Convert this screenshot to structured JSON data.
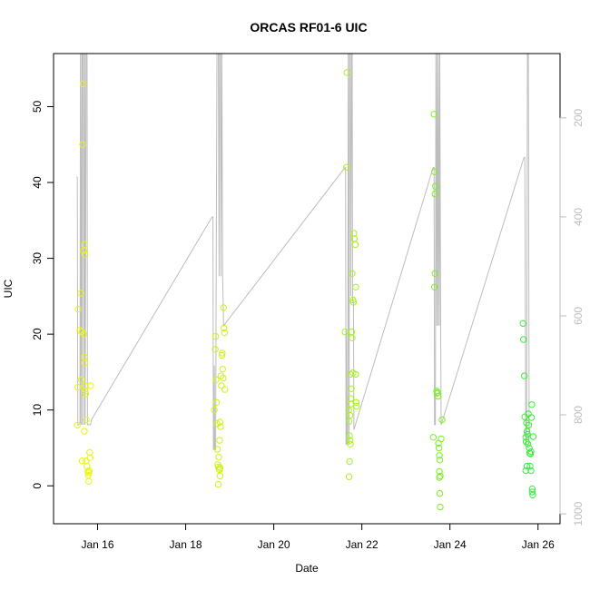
{
  "chart_data": {
    "type": "scatter",
    "title": "ORCAS RF01-6 UIC",
    "xlabel": "Date",
    "ylabel": "UIC",
    "x_ticks": [
      "Jan 16",
      "Jan 18",
      "Jan 20",
      "Jan 22",
      "Jan 24",
      "Jan 26"
    ],
    "x_tick_values": [
      16,
      18,
      20,
      22,
      24,
      26
    ],
    "xlim": [
      15.0,
      26.5
    ],
    "ylim": [
      -5,
      57
    ],
    "y_ticks": [
      0,
      10,
      20,
      30,
      40,
      50
    ],
    "y2_ticks": [
      200,
      400,
      600,
      800,
      1000
    ],
    "y2lim": [
      1020,
      70
    ],
    "y2_reversed": true,
    "grid": false,
    "colors": {
      "secondary_line": "#bdbdbd",
      "right_axis": "#bdbdbd",
      "flight_points": [
        "#e8f50f",
        "#d0f214",
        "#a8f21c",
        "#7cef24",
        "#3cec3c"
      ]
    },
    "flights": [
      {
        "points": [
          [
            15.54,
            8
          ],
          [
            15.55,
            13
          ],
          [
            15.56,
            23.3
          ],
          [
            15.6,
            20.5
          ],
          [
            15.62,
            25.4
          ],
          [
            15.63,
            14
          ],
          [
            15.64,
            20.3
          ],
          [
            15.66,
            45
          ],
          [
            15.67,
            53
          ],
          [
            15.68,
            31
          ],
          [
            15.7,
            31.8
          ],
          [
            15.71,
            30.5
          ],
          [
            15.69,
            20
          ],
          [
            15.7,
            17
          ],
          [
            15.71,
            16.2
          ],
          [
            15.72,
            13.2
          ],
          [
            15.72,
            12.5
          ],
          [
            15.73,
            12.1
          ],
          [
            15.74,
            8.7
          ],
          [
            15.7,
            7.2
          ],
          [
            15.74,
            3.3
          ],
          [
            15.76,
            2.6
          ],
          [
            15.78,
            1.9
          ],
          [
            15.79,
            1.4
          ],
          [
            15.8,
            1.7
          ],
          [
            15.8,
            0.6
          ],
          [
            15.81,
            2
          ],
          [
            15.82,
            4.4
          ],
          [
            15.83,
            3.7
          ],
          [
            15.84,
            13.2
          ],
          [
            15.65,
            3.3
          ]
        ]
      },
      {
        "points": [
          [
            18.65,
            10
          ],
          [
            18.67,
            18
          ],
          [
            18.68,
            19.7
          ],
          [
            18.69,
            14
          ],
          [
            18.7,
            11
          ],
          [
            18.71,
            8.2
          ],
          [
            18.72,
            4.8
          ],
          [
            18.73,
            2.8
          ],
          [
            18.74,
            2.5
          ],
          [
            18.74,
            0.2
          ],
          [
            18.75,
            3.8
          ],
          [
            18.76,
            2.2
          ],
          [
            18.77,
            6
          ],
          [
            18.78,
            8.4
          ],
          [
            18.78,
            1.3
          ],
          [
            18.79,
            7.8
          ],
          [
            18.8,
            14.5
          ],
          [
            18.81,
            13.2
          ],
          [
            18.82,
            17.2
          ],
          [
            18.83,
            17.5
          ],
          [
            18.84,
            15.4
          ],
          [
            18.85,
            14.2
          ],
          [
            18.86,
            23.5
          ],
          [
            18.87,
            20.8
          ],
          [
            18.88,
            20.2
          ],
          [
            18.89,
            12.7
          ],
          [
            18.78,
            2.4
          ],
          [
            18.77,
            2.1
          ]
        ]
      },
      {
        "points": [
          [
            21.62,
            20.3
          ],
          [
            21.66,
            54.5
          ],
          [
            21.65,
            42
          ],
          [
            21.7,
            10
          ],
          [
            21.71,
            8.5
          ],
          [
            21.72,
            6.6
          ],
          [
            21.73,
            6
          ],
          [
            21.74,
            5.5
          ],
          [
            21.72,
            3.2
          ],
          [
            21.71,
            1.2
          ],
          [
            21.74,
            14.7
          ],
          [
            21.75,
            11.5
          ],
          [
            21.76,
            10.8
          ],
          [
            21.77,
            20.3
          ],
          [
            21.78,
            19.5
          ],
          [
            21.78,
            28
          ],
          [
            21.8,
            24.5
          ],
          [
            21.81,
            24.2
          ],
          [
            21.82,
            33.3
          ],
          [
            21.83,
            32.6
          ],
          [
            21.85,
            31.8
          ],
          [
            21.86,
            26.2
          ],
          [
            21.86,
            14.7
          ],
          [
            21.87,
            11
          ],
          [
            21.88,
            10.5
          ],
          [
            21.8,
            14.9
          ],
          [
            21.76,
            12.8
          ],
          [
            21.73,
            9.3
          ]
        ]
      },
      {
        "points": [
          [
            23.62,
            6.4
          ],
          [
            23.64,
            49
          ],
          [
            23.65,
            41.4
          ],
          [
            23.66,
            38.5
          ],
          [
            23.67,
            39.5
          ],
          [
            23.66,
            28
          ],
          [
            23.65,
            26.2
          ],
          [
            23.7,
            12.5
          ],
          [
            23.71,
            12.2
          ],
          [
            23.72,
            12.3
          ],
          [
            23.73,
            11.8
          ],
          [
            23.74,
            5.6
          ],
          [
            23.75,
            5
          ],
          [
            23.76,
            4
          ],
          [
            23.77,
            3.4
          ],
          [
            23.76,
            1.9
          ],
          [
            23.78,
            1.3
          ],
          [
            23.76,
            1.1
          ],
          [
            23.77,
            -1
          ],
          [
            23.78,
            -2.8
          ],
          [
            23.8,
            6.2
          ],
          [
            23.82,
            8.7
          ]
        ]
      },
      {
        "points": [
          [
            25.66,
            21.4
          ],
          [
            25.67,
            19.3
          ],
          [
            25.69,
            14.5
          ],
          [
            25.7,
            9.1
          ],
          [
            25.72,
            6.4
          ],
          [
            25.73,
            5.8
          ],
          [
            25.74,
            8.3
          ],
          [
            25.75,
            7.2
          ],
          [
            25.76,
            6.8
          ],
          [
            25.77,
            5.5
          ],
          [
            25.78,
            9.5
          ],
          [
            25.79,
            8
          ],
          [
            25.8,
            5
          ],
          [
            25.81,
            4.3
          ],
          [
            25.82,
            2.6
          ],
          [
            25.83,
            4.2
          ],
          [
            25.84,
            4.5
          ],
          [
            25.84,
            2
          ],
          [
            25.85,
            9
          ],
          [
            25.86,
            10.7
          ],
          [
            25.87,
            -0.4
          ],
          [
            25.87,
            -0.8
          ],
          [
            25.88,
            -1.2
          ],
          [
            25.89,
            6.5
          ],
          [
            25.75,
            2.6
          ],
          [
            25.72,
            2
          ]
        ]
      }
    ],
    "secondary_series": {
      "axis": "right",
      "points": [
        [
          15.52,
          320
        ],
        [
          15.54,
          320
        ],
        [
          15.55,
          820
        ],
        [
          15.6,
          820
        ],
        [
          15.61,
          70
        ],
        [
          15.62,
          820
        ],
        [
          15.64,
          70
        ],
        [
          15.65,
          820
        ],
        [
          15.66,
          70
        ],
        [
          15.68,
          70
        ],
        [
          15.69,
          820
        ],
        [
          15.71,
          70
        ],
        [
          15.72,
          820
        ],
        [
          15.74,
          70
        ],
        [
          15.76,
          70
        ],
        [
          15.77,
          820
        ],
        [
          15.82,
          820
        ],
        [
          15.84,
          820
        ],
        [
          15.86,
          810
        ],
        [
          18.6,
          400
        ],
        [
          18.62,
          400
        ],
        [
          18.63,
          870
        ],
        [
          18.64,
          870
        ],
        [
          18.65,
          700
        ],
        [
          18.66,
          870
        ],
        [
          18.68,
          870
        ],
        [
          18.69,
          620
        ],
        [
          18.71,
          70
        ],
        [
          18.73,
          70
        ],
        [
          18.74,
          70
        ],
        [
          18.76,
          520
        ],
        [
          18.77,
          70
        ],
        [
          18.79,
          70
        ],
        [
          18.8,
          520
        ],
        [
          18.82,
          70
        ],
        [
          18.84,
          520
        ],
        [
          18.86,
          620
        ],
        [
          21.62,
          300
        ],
        [
          21.63,
          300
        ],
        [
          21.64,
          860
        ],
        [
          21.65,
          630
        ],
        [
          21.66,
          860
        ],
        [
          21.68,
          860
        ],
        [
          21.69,
          70
        ],
        [
          21.71,
          860
        ],
        [
          21.72,
          70
        ],
        [
          21.74,
          70
        ],
        [
          21.75,
          560
        ],
        [
          21.77,
          70
        ],
        [
          21.78,
          70
        ],
        [
          21.79,
          570
        ],
        [
          21.81,
          570
        ],
        [
          21.82,
          830
        ],
        [
          23.62,
          300
        ],
        [
          23.64,
          300
        ],
        [
          23.65,
          820
        ],
        [
          23.67,
          820
        ],
        [
          23.68,
          70
        ],
        [
          23.7,
          620
        ],
        [
          23.71,
          70
        ],
        [
          23.73,
          620
        ],
        [
          23.74,
          70
        ],
        [
          23.76,
          620
        ],
        [
          23.77,
          70
        ],
        [
          23.79,
          620
        ],
        [
          23.8,
          820
        ],
        [
          25.68,
          280
        ],
        [
          25.7,
          280
        ],
        [
          25.72,
          860
        ],
        [
          25.74,
          860
        ],
        [
          25.76,
          70
        ],
        [
          25.78,
          70
        ],
        [
          25.8,
          860
        ]
      ]
    }
  }
}
